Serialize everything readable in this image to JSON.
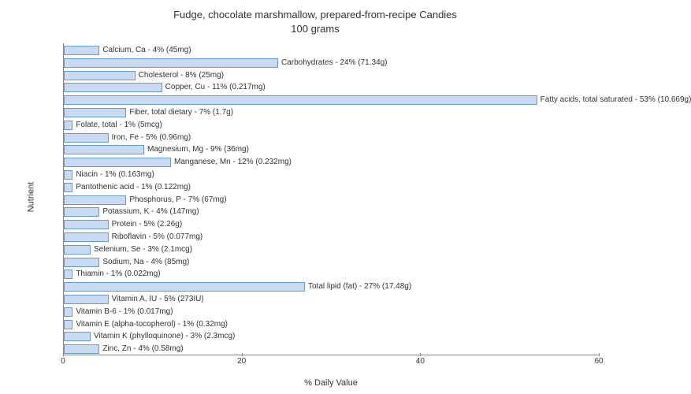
{
  "chart": {
    "type": "bar-horizontal",
    "title_line1": "Fudge, chocolate marshmallow, prepared-from-recipe Candies",
    "title_line2": "100 grams",
    "title_fontsize": 13,
    "xlabel": "% Daily Value",
    "ylabel": "Nutrient",
    "label_fontsize": 11,
    "xlim": [
      0,
      60
    ],
    "xtick_step": 20,
    "xticks": [
      0,
      20,
      40,
      60
    ],
    "background_color": "#ffffff",
    "bar_fill": "#c9daf3",
    "bar_border": "#6699cc",
    "grid_color": "#dddddd",
    "tick_font_size": 10,
    "bar_label_font_size": 10,
    "items": [
      {
        "label": "Calcium, Ca - 4% (45mg)",
        "value": 4
      },
      {
        "label": "Carbohydrates - 24% (71.34g)",
        "value": 24
      },
      {
        "label": "Cholesterol - 8% (25mg)",
        "value": 8
      },
      {
        "label": "Copper, Cu - 11% (0.217mg)",
        "value": 11
      },
      {
        "label": "Fatty acids, total saturated - 53% (10.669g)",
        "value": 53
      },
      {
        "label": "Fiber, total dietary - 7% (1.7g)",
        "value": 7
      },
      {
        "label": "Folate, total - 1% (5mcg)",
        "value": 1
      },
      {
        "label": "Iron, Fe - 5% (0.96mg)",
        "value": 5
      },
      {
        "label": "Magnesium, Mg - 9% (36mg)",
        "value": 9
      },
      {
        "label": "Manganese, Mn - 12% (0.232mg)",
        "value": 12
      },
      {
        "label": "Niacin - 1% (0.163mg)",
        "value": 1
      },
      {
        "label": "Pantothenic acid - 1% (0.122mg)",
        "value": 1
      },
      {
        "label": "Phosphorus, P - 7% (67mg)",
        "value": 7
      },
      {
        "label": "Potassium, K - 4% (147mg)",
        "value": 4
      },
      {
        "label": "Protein - 5% (2.26g)",
        "value": 5
      },
      {
        "label": "Riboflavin - 5% (0.077mg)",
        "value": 5
      },
      {
        "label": "Selenium, Se - 3% (2.1mcg)",
        "value": 3
      },
      {
        "label": "Sodium, Na - 4% (85mg)",
        "value": 4
      },
      {
        "label": "Thiamin - 1% (0.022mg)",
        "value": 1
      },
      {
        "label": "Total lipid (fat) - 27% (17.48g)",
        "value": 27
      },
      {
        "label": "Vitamin A, IU - 5% (273IU)",
        "value": 5
      },
      {
        "label": "Vitamin B-6 - 1% (0.017mg)",
        "value": 1
      },
      {
        "label": "Vitamin E (alpha-tocopherol) - 1% (0.32mg)",
        "value": 1
      },
      {
        "label": "Vitamin K (phylloquinone) - 3% (2.3mcg)",
        "value": 3
      },
      {
        "label": "Zinc, Zn - 4% (0.58mg)",
        "value": 4
      }
    ]
  }
}
